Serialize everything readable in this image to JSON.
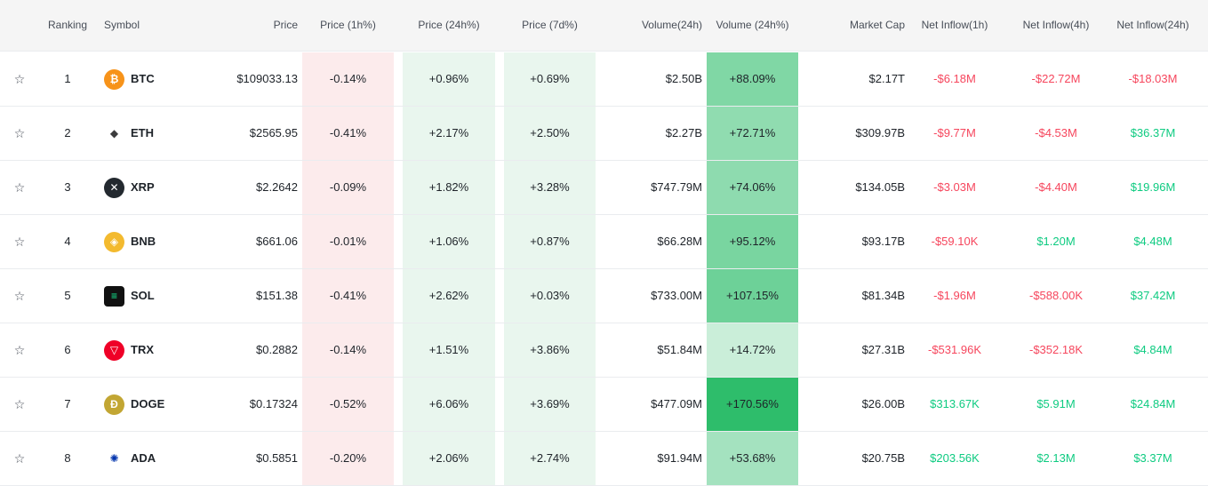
{
  "headers": {
    "ranking": "Ranking",
    "symbol": "Symbol",
    "price": "Price",
    "p1h": "Price (1h%)",
    "p24h": "Price (24h%)",
    "p7d": "Price (7d%)",
    "vol": "Volume(24h)",
    "vol24pct": "Volume (24h%)",
    "mcap": "Market Cap",
    "in1h": "Net Inflow(1h)",
    "in4h": "Net Inflow(4h)",
    "in24h": "Net Inflow(24h)"
  },
  "star_glyph": "☆",
  "colors": {
    "negative": "#f6465d",
    "positive": "#0ecb81",
    "neg_bg": "#fcebec",
    "pos_bg": "#e9f6ee"
  },
  "rows": [
    {
      "rank": "1",
      "symbol": "BTC",
      "icon": "btc-icon",
      "icon_color": "#f7931a",
      "icon_glyph": "₿",
      "price": "$109033.13",
      "p1h": "-0.14%",
      "p24h": "+0.96%",
      "p7d": "+0.69%",
      "vol": "$2.50B",
      "vol24pct": "+88.09%",
      "vol24_level": 0.52,
      "mcap": "$2.17T",
      "in1h": "-$6.18M",
      "in4h": "-$22.72M",
      "in24h": "-$18.03M"
    },
    {
      "rank": "2",
      "symbol": "ETH",
      "icon": "eth-icon",
      "icon_color": "#ffffff",
      "icon_glyph": "◆",
      "price": "$2565.95",
      "p1h": "-0.41%",
      "p24h": "+2.17%",
      "p7d": "+2.50%",
      "vol": "$2.27B",
      "vol24pct": "+72.71%",
      "vol24_level": 0.43,
      "mcap": "$309.97B",
      "in1h": "-$9.77M",
      "in4h": "-$4.53M",
      "in24h": "$36.37M"
    },
    {
      "rank": "3",
      "symbol": "XRP",
      "icon": "xrp-icon",
      "icon_color": "#23292f",
      "icon_glyph": "✕",
      "price": "$2.2642",
      "p1h": "-0.09%",
      "p24h": "+1.82%",
      "p7d": "+3.28%",
      "vol": "$747.79M",
      "vol24pct": "+74.06%",
      "vol24_level": 0.44,
      "mcap": "$134.05B",
      "in1h": "-$3.03M",
      "in4h": "-$4.40M",
      "in24h": "$19.96M"
    },
    {
      "rank": "4",
      "symbol": "BNB",
      "icon": "bnb-icon",
      "icon_color": "#f3ba2f",
      "icon_glyph": "◈",
      "price": "$661.06",
      "p1h": "-0.01%",
      "p24h": "+1.06%",
      "p7d": "+0.87%",
      "vol": "$66.28M",
      "vol24pct": "+95.12%",
      "vol24_level": 0.56,
      "mcap": "$93.17B",
      "in1h": "-$59.10K",
      "in4h": "$1.20M",
      "in24h": "$4.48M"
    },
    {
      "rank": "5",
      "symbol": "SOL",
      "icon": "sol-icon",
      "icon_color": "#111111",
      "icon_glyph": "≡",
      "price": "$151.38",
      "p1h": "-0.41%",
      "p24h": "+2.62%",
      "p7d": "+0.03%",
      "vol": "$733.00M",
      "vol24pct": "+107.15%",
      "vol24_level": 0.63,
      "mcap": "$81.34B",
      "in1h": "-$1.96M",
      "in4h": "-$588.00K",
      "in24h": "$37.42M"
    },
    {
      "rank": "6",
      "symbol": "TRX",
      "icon": "trx-icon",
      "icon_color": "#ef0027",
      "icon_glyph": "▽",
      "price": "$0.2882",
      "p1h": "-0.14%",
      "p24h": "+1.51%",
      "p7d": "+3.86%",
      "vol": "$51.84M",
      "vol24pct": "+14.72%",
      "vol24_level": 0.09,
      "mcap": "$27.31B",
      "in1h": "-$531.96K",
      "in4h": "-$352.18K",
      "in24h": "$4.84M"
    },
    {
      "rank": "7",
      "symbol": "DOGE",
      "icon": "doge-icon",
      "icon_color": "#c2a633",
      "icon_glyph": "Ð",
      "price": "$0.17324",
      "p1h": "-0.52%",
      "p24h": "+6.06%",
      "p7d": "+3.69%",
      "vol": "$477.09M",
      "vol24pct": "+170.56%",
      "vol24_level": 1.0,
      "mcap": "$26.00B",
      "in1h": "$313.67K",
      "in4h": "$5.91M",
      "in24h": "$24.84M"
    },
    {
      "rank": "8",
      "symbol": "ADA",
      "icon": "ada-icon",
      "icon_color": "#ffffff",
      "icon_glyph": "✺",
      "price": "$0.5851",
      "p1h": "-0.20%",
      "p24h": "+2.06%",
      "p7d": "+2.74%",
      "vol": "$91.94M",
      "vol24pct": "+53.68%",
      "vol24_level": 0.31,
      "mcap": "$20.75B",
      "in1h": "$203.56K",
      "in4h": "$2.13M",
      "in24h": "$3.37M"
    }
  ]
}
